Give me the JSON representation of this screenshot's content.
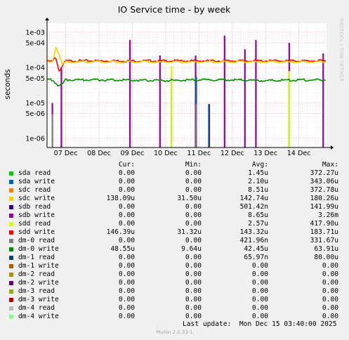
{
  "chart_data": {
    "type": "line",
    "title": "IO Service time - by week",
    "ylabel": "seconds",
    "watermark": "RRDTOOL / TOBI OETIKER",
    "y_scale": "log",
    "ylim": [
      5.5e-07,
      0.0018
    ],
    "yticks": [
      {
        "value": 1e-06,
        "label": "1e-06"
      },
      {
        "value": 5e-06,
        "label": "5e-06"
      },
      {
        "value": 1e-05,
        "label": "1e-05"
      },
      {
        "value": 5e-05,
        "label": "5e-05"
      },
      {
        "value": 0.0001,
        "label": "1e-04"
      },
      {
        "value": 0.0005,
        "label": "5e-04"
      },
      {
        "value": 0.001,
        "label": "1e-03"
      }
    ],
    "xlim_days": [
      6.44,
      14.83
    ],
    "xticks": [
      {
        "day": 7,
        "label": "07 Dec"
      },
      {
        "day": 8,
        "label": "08 Dec"
      },
      {
        "day": 9,
        "label": "09 Dec"
      },
      {
        "day": 10,
        "label": "10 Dec"
      },
      {
        "day": 11,
        "label": "11 Dec"
      },
      {
        "day": 12,
        "label": "12 Dec"
      },
      {
        "day": 13,
        "label": "13 Dec"
      },
      {
        "day": 14,
        "label": "14 Dec"
      }
    ],
    "grid": true,
    "headers": {
      "cur": "Cur:",
      "min": "Min:",
      "avg": "Avg:",
      "max": "Max:"
    },
    "series": [
      {
        "name": "sda read",
        "color": "#00cc00",
        "cur": "0.00",
        "min": "0.00",
        "avg": "1.45u",
        "max": "372.27u"
      },
      {
        "name": "sda write",
        "color": "#0066b3",
        "cur": "0.00",
        "min": "0.00",
        "avg": "2.10u",
        "max": "343.06u"
      },
      {
        "name": "sdc read",
        "color": "#ff8000",
        "cur": "0.00",
        "min": "0.00",
        "avg": "8.51u",
        "max": "372.78u"
      },
      {
        "name": "sdc write",
        "color": "#ffcc00",
        "cur": "138.09u",
        "min": "31.50u",
        "avg": "142.74u",
        "max": "180.26u"
      },
      {
        "name": "sdb read",
        "color": "#330099",
        "cur": "0.00",
        "min": "0.00",
        "avg": "501.42n",
        "max": "141.99u"
      },
      {
        "name": "sdb write",
        "color": "#990099",
        "cur": "0.00",
        "min": "0.00",
        "avg": "8.65u",
        "max": "3.26m"
      },
      {
        "name": "sdd read",
        "color": "#ccff00",
        "cur": "0.00",
        "min": "0.00",
        "avg": "2.57u",
        "max": "417.90u"
      },
      {
        "name": "sdd write",
        "color": "#ff0000",
        "cur": "146.39u",
        "min": "31.32u",
        "avg": "143.32u",
        "max": "183.71u"
      },
      {
        "name": "dm-0 read",
        "color": "#808080",
        "cur": "0.00",
        "min": "0.00",
        "avg": "421.96n",
        "max": "331.67u"
      },
      {
        "name": "dm-0 write",
        "color": "#008f00",
        "cur": "48.55u",
        "min": "9.64u",
        "avg": "42.45u",
        "max": "63.91u"
      },
      {
        "name": "dm-1 read",
        "color": "#00487d",
        "cur": "0.00",
        "min": "0.00",
        "avg": "65.97n",
        "max": "80.00u"
      },
      {
        "name": "dm-1 write",
        "color": "#b35a00",
        "cur": "0.00",
        "min": "0.00",
        "avg": "0.00",
        "max": "0.00"
      },
      {
        "name": "dm-2 read",
        "color": "#b38f00",
        "cur": "0.00",
        "min": "0.00",
        "avg": "0.00",
        "max": "0.00"
      },
      {
        "name": "dm-2 write",
        "color": "#6b006b",
        "cur": "0.00",
        "min": "0.00",
        "avg": "0.00",
        "max": "0.00"
      },
      {
        "name": "dm-3 read",
        "color": "#8fb300",
        "cur": "0.00",
        "min": "0.00",
        "avg": "0.00",
        "max": "0.00"
      },
      {
        "name": "dm-3 write",
        "color": "#b30000",
        "cur": "0.00",
        "min": "0.00",
        "avg": "0.00",
        "max": "0.00"
      },
      {
        "name": "dm-4 read",
        "color": "#bebebe",
        "cur": "0.00",
        "min": "0.00",
        "avg": "0.00",
        "max": "0.00"
      },
      {
        "name": "dm-4 write",
        "color": "#80ff80",
        "cur": "0.00",
        "min": "0.00",
        "avg": "0.00",
        "max": "0.00"
      }
    ],
    "lines": [
      {
        "name": "sdd write",
        "color": "#ff0000",
        "x": [
          6.45,
          6.6,
          6.7,
          6.8,
          7.0,
          8.0,
          9.0,
          10.0,
          11.0,
          12.0,
          13.0,
          14.0,
          14.8
        ],
        "y": [
          0.00015,
          0.00015,
          0.0002,
          8e-05,
          0.000155,
          0.000155,
          0.000155,
          0.000155,
          0.000155,
          0.000155,
          0.000155,
          0.000155,
          0.000155
        ]
      },
      {
        "name": "sdc write",
        "color": "#ffcc00",
        "x": [
          6.45,
          6.6,
          6.7,
          6.8,
          6.9,
          7.0,
          8.0,
          9.0,
          10.0,
          11.0,
          12.0,
          13.0,
          14.0,
          14.8
        ],
        "y": [
          0.00014,
          0.00014,
          0.00038,
          0.00025,
          0.00012,
          0.000145,
          0.000145,
          0.000145,
          0.000145,
          0.000145,
          0.000145,
          0.000145,
          0.000145,
          0.000145
        ]
      },
      {
        "name": "dm-0 write",
        "color": "#008f00",
        "x": [
          6.45,
          6.6,
          6.8,
          6.9,
          7.0,
          8.0,
          9.0,
          10.0,
          11.0,
          12.0,
          13.0,
          14.0,
          14.8
        ],
        "y": [
          4.5e-05,
          4.5e-05,
          3e-05,
          3.4e-05,
          4.5e-05,
          4.5e-05,
          4.4e-05,
          4.3e-05,
          4.5e-05,
          4.5e-05,
          4.3e-05,
          4.4e-05,
          4.5e-05
        ]
      }
    ],
    "spikes": [
      {
        "series": "sdb write",
        "color": "#990099",
        "day": 6.6,
        "value": 1e-05
      },
      {
        "series": "sdb write",
        "color": "#990099",
        "day": 6.87,
        "value": 0.0001
      },
      {
        "series": "sdb write",
        "color": "#990099",
        "day": 8.93,
        "value": 0.0006
      },
      {
        "series": "sdb write",
        "color": "#990099",
        "day": 9.83,
        "value": 0.00022
      },
      {
        "series": "sdb write",
        "color": "#990099",
        "day": 10.9,
        "value": 0.00022
      },
      {
        "series": "sdb write",
        "color": "#990099",
        "day": 11.31,
        "value": 9.3e-06
      },
      {
        "series": "sdb write",
        "color": "#990099",
        "day": 11.77,
        "value": 0.0008
      },
      {
        "series": "sdb write",
        "color": "#990099",
        "day": 12.38,
        "value": 0.00033
      },
      {
        "series": "sdb write",
        "color": "#990099",
        "day": 12.71,
        "value": 0.0006
      },
      {
        "series": "sdb write",
        "color": "#990099",
        "day": 13.71,
        "value": 0.0005
      },
      {
        "series": "sdb write",
        "color": "#990099",
        "day": 14.73,
        "value": 0.00025
      },
      {
        "series": "sda write",
        "color": "#0066b3",
        "day": 10.18,
        "value": 5.5e-05
      },
      {
        "series": "sda write",
        "color": "#0066b3",
        "day": 10.92,
        "value": 5.5e-05
      },
      {
        "series": "dm-1 read",
        "color": "#00487d",
        "day": 11.3,
        "value": 9.3e-06
      },
      {
        "series": "dm-0 read",
        "color": "#808080",
        "day": 6.6,
        "value": 4.8e-06
      },
      {
        "series": "dm-0 read",
        "color": "#808080",
        "day": 10.18,
        "value": 6e-05
      },
      {
        "series": "dm-0 read",
        "color": "#808080",
        "day": 10.92,
        "value": 9.3e-06
      },
      {
        "series": "dm-0 read",
        "color": "#808080",
        "day": 13.71,
        "value": 6e-05
      },
      {
        "series": "sdd read",
        "color": "#ccff00",
        "day": 10.18,
        "value": 0.00011
      },
      {
        "series": "sdd read",
        "color": "#ccff00",
        "day": 13.71,
        "value": 8e-05
      }
    ]
  },
  "footer": {
    "last_update": "Last update:  Mon Dec 15 03:40:00 2025",
    "munin": "Munin 2.0.33-1"
  }
}
